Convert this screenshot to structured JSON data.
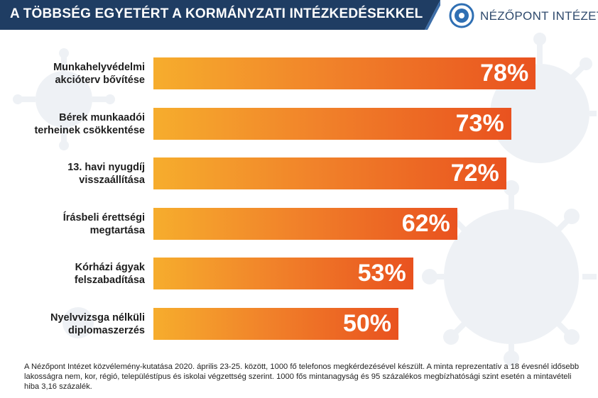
{
  "header": {
    "title": "A TÖBBSÉG EGYETÉRT A KORMÁNYZATI INTÉZKEDÉSEKKEL",
    "bg_color": "#1f3d63"
  },
  "logo": {
    "text": "NÉZŐPONT INTÉZET",
    "icon": "nezopont-logo-icon",
    "color": "#2f4a6d"
  },
  "chart_data": {
    "type": "bar",
    "orientation": "horizontal",
    "title": "A TÖBBSÉG EGYETÉRT A KORMÁNYZATI INTÉZKEDÉSEKKEL",
    "categories": [
      [
        "Munkahelyvédelmi",
        "akcióterv bővítése"
      ],
      [
        "Bérek munkaadói",
        "terheinek csökkentése"
      ],
      [
        "13. havi nyugdíj",
        "visszaállítása"
      ],
      [
        "Írásbeli érettségi",
        "megtartása"
      ],
      [
        "Kórházi ágyak",
        "felszabadítása"
      ],
      [
        "Nyelvvizsga nélküli",
        "diplomaszerzés"
      ]
    ],
    "values": [
      78,
      73,
      72,
      62,
      53,
      50
    ],
    "value_labels": [
      "78%",
      "73%",
      "72%",
      "62%",
      "53%",
      "50%"
    ],
    "unit": "%",
    "xlim": [
      0,
      100
    ],
    "grid": false,
    "legend": "none",
    "colors": {
      "start": "#f6ad2d",
      "end": "#e9521f",
      "value_text": "#ffffff"
    }
  },
  "footnote": "A Nézőpont Intézet közvélemény-kutatása 2020. április 23-25. között, 1000 fő telefonos megkérdezésével készült. A minta reprezentatív a 18 évesnél idősebb lakosságra nem, kor, régió, településtípus és iskolai végzettség szerint. 1000 fős mintanagyság és 95 százalékos megbízhatósági szint esetén a mintavételi hiba 3,16 százalék."
}
